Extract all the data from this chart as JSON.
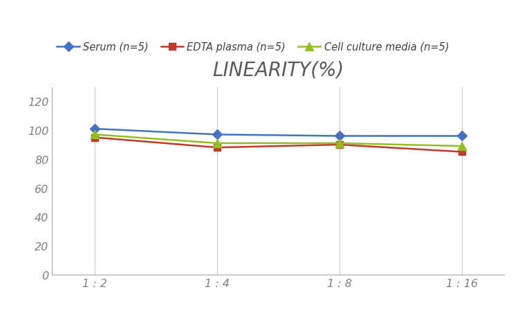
{
  "title": "LINEARITY(%)",
  "x_labels": [
    "1 : 2",
    "1 : 4",
    "1 : 8",
    "1 : 16"
  ],
  "x_positions": [
    0,
    1,
    2,
    3
  ],
  "series": [
    {
      "label": "Serum (n=5)",
      "values": [
        101,
        97,
        96,
        96
      ],
      "color": "#4472C4",
      "marker": "D",
      "marker_size": 7,
      "linewidth": 1.8
    },
    {
      "label": "EDTA plasma (n=5)",
      "values": [
        95,
        88,
        90,
        85
      ],
      "color": "#C0392B",
      "marker": "s",
      "marker_size": 7,
      "linewidth": 1.8
    },
    {
      "label": "Cell culture media (n=5)",
      "values": [
        97,
        91,
        91,
        89
      ],
      "color": "#92C01F",
      "marker": "^",
      "marker_size": 8,
      "linewidth": 1.8
    }
  ],
  "ylim": [
    0,
    130
  ],
  "yticks": [
    0,
    20,
    40,
    60,
    80,
    100,
    120
  ],
  "grid_color": "#C8C8C8",
  "background_color": "#FFFFFF",
  "title_fontsize": 20,
  "title_color": "#595959",
  "legend_fontsize": 10.5,
  "tick_fontsize": 11.5,
  "tick_color": "#808080"
}
